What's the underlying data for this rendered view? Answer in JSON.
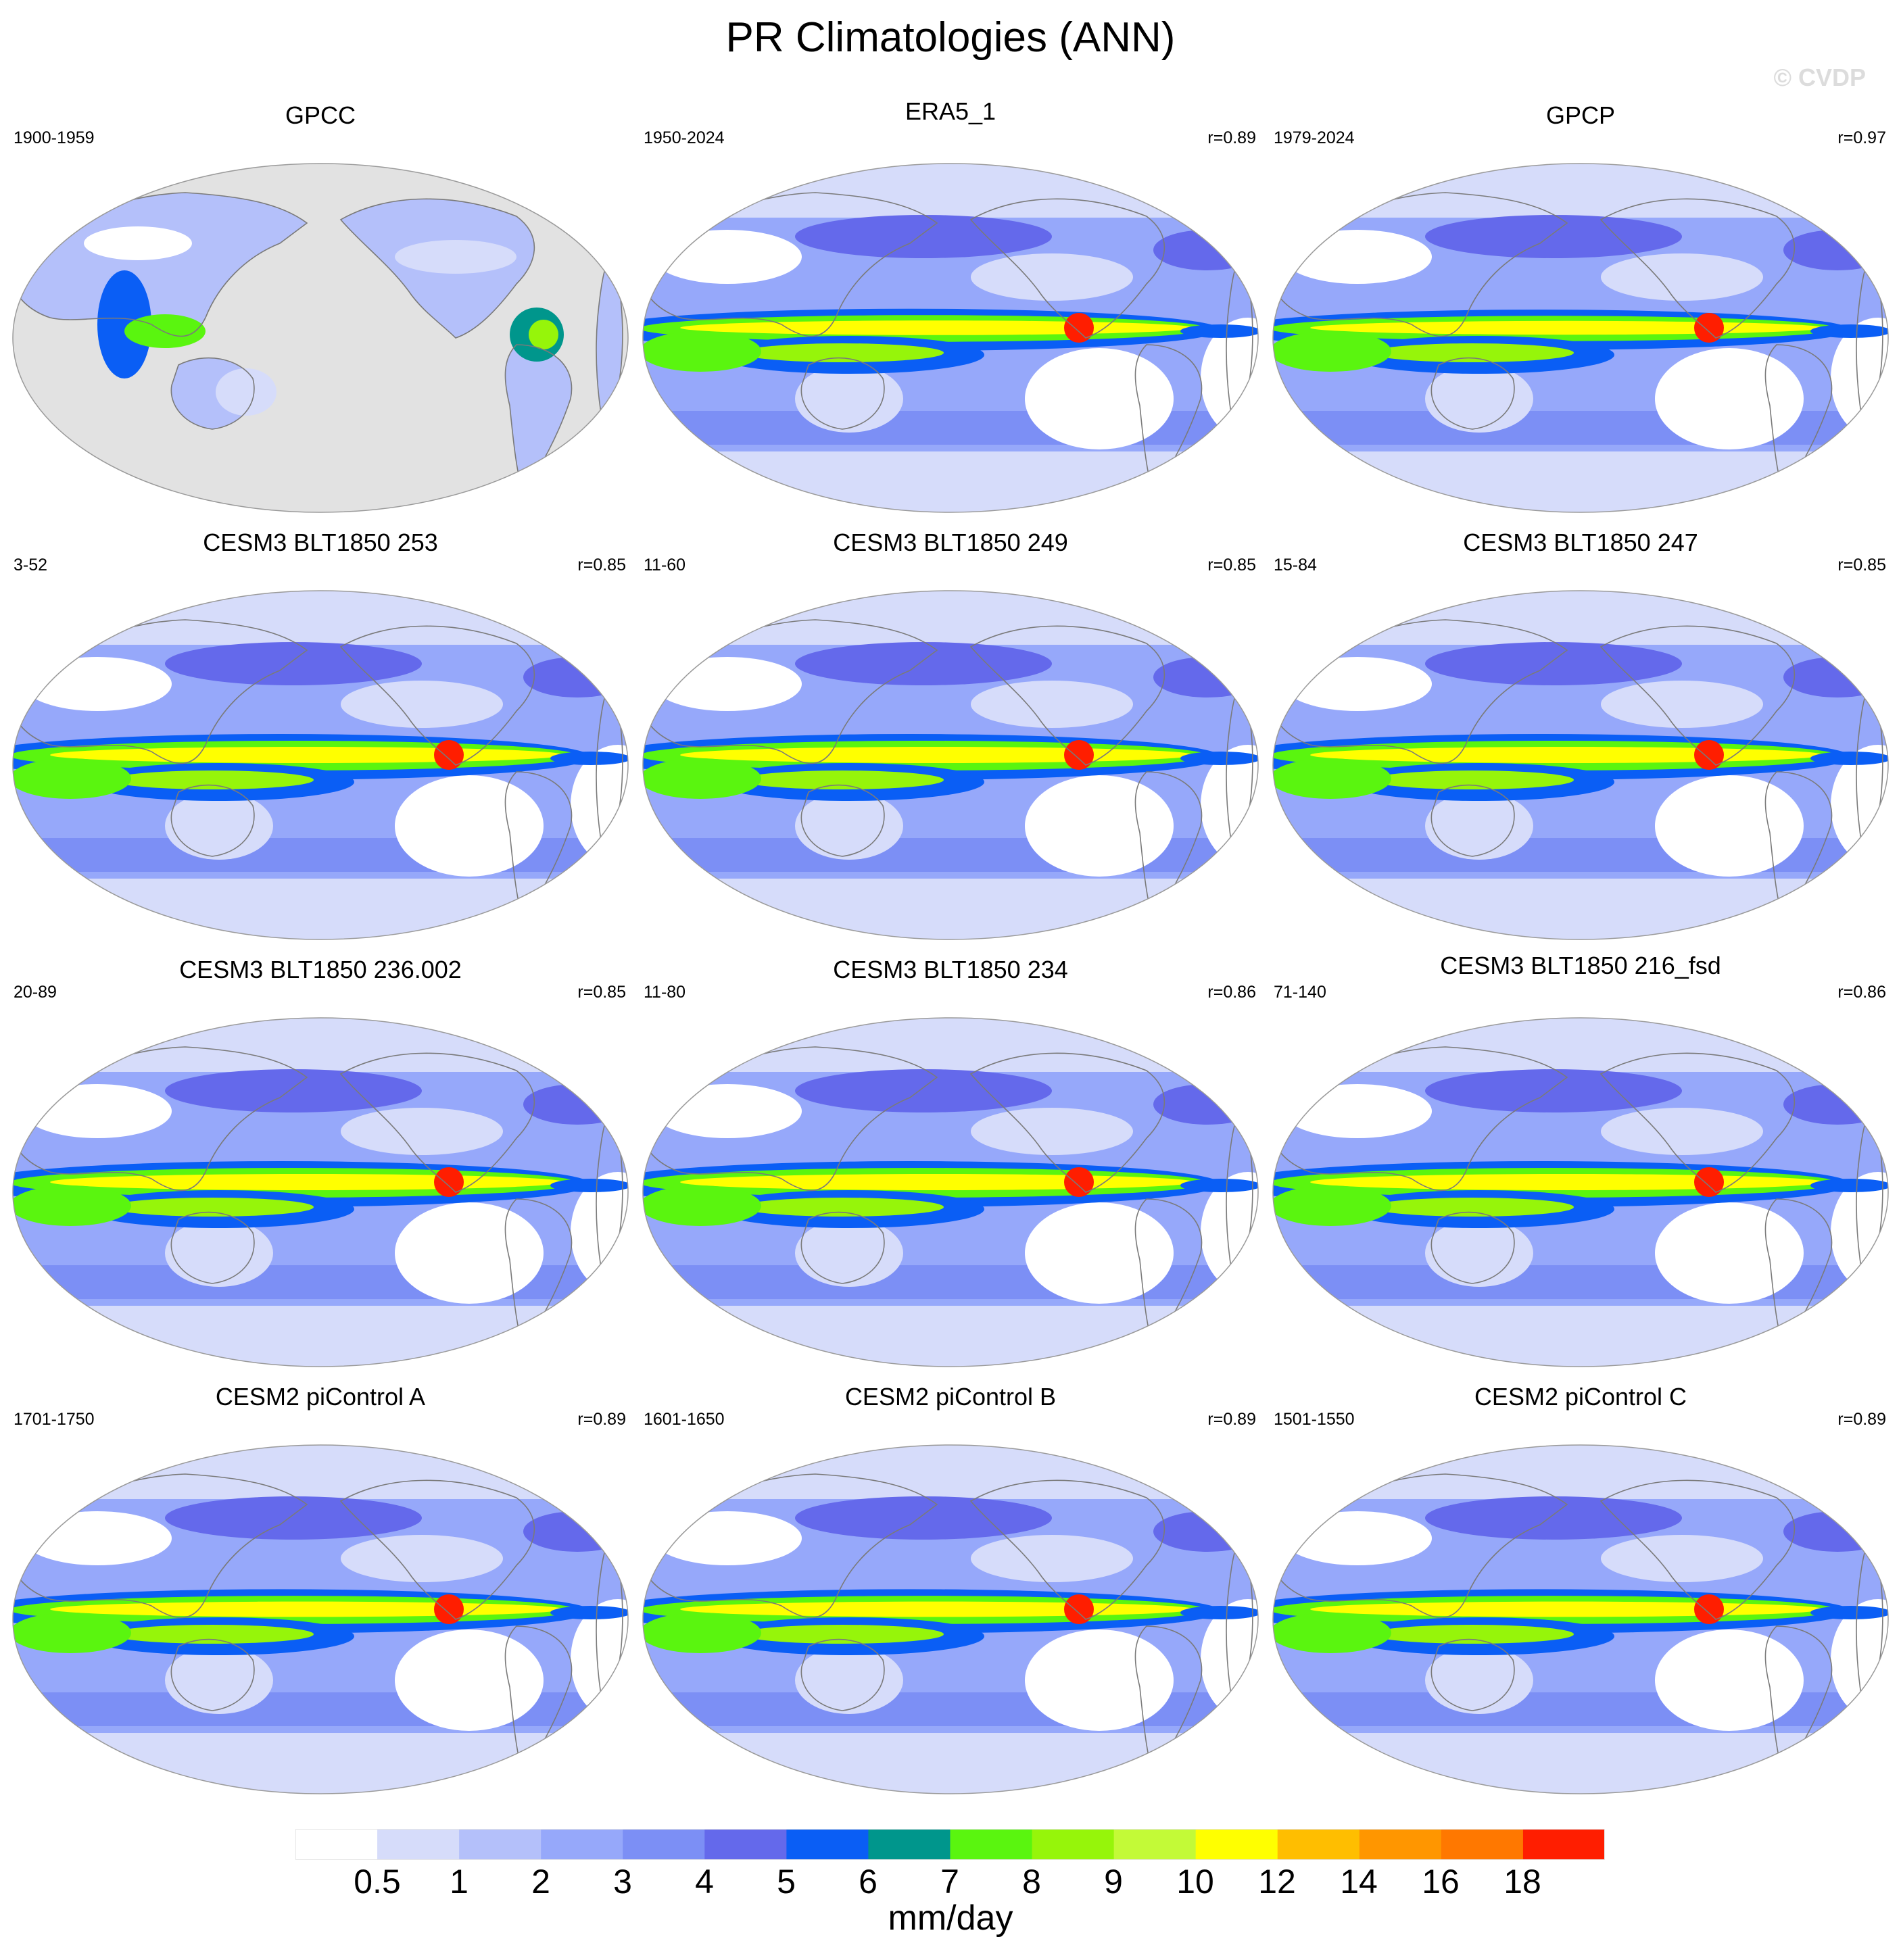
{
  "title": "PR Climatologies (ANN)",
  "watermark": "© CVDP",
  "panels": [
    {
      "title": "GPCC",
      "years": "1900-1959",
      "corr": "",
      "land_only": true,
      "itcz": 0
    },
    {
      "title": "ERA5_1",
      "years": "1950-2024",
      "corr": "r=0.89",
      "land_only": false,
      "itcz": 0.8
    },
    {
      "title": "GPCP",
      "years": "1979-2024",
      "corr": "r=0.97",
      "land_only": false,
      "itcz": 0.7
    },
    {
      "title": "CESM3 BLT1850 253",
      "years": "3-52",
      "corr": "r=0.85",
      "land_only": false,
      "itcz": 1.0
    },
    {
      "title": "CESM3 BLT1850 249",
      "years": "11-60",
      "corr": "r=0.85",
      "land_only": false,
      "itcz": 1.0
    },
    {
      "title": "CESM3 BLT1850 247",
      "years": "15-84",
      "corr": "r=0.85",
      "land_only": false,
      "itcz": 1.0
    },
    {
      "title": "CESM3 BLT1850 236.002",
      "years": "20-89",
      "corr": "r=0.85",
      "land_only": false,
      "itcz": 1.0
    },
    {
      "title": "CESM3 BLT1850 234",
      "years": "11-80",
      "corr": "r=0.86",
      "land_only": false,
      "itcz": 1.0
    },
    {
      "title": "CESM3 BLT1850 216_fsd",
      "years": "71-140",
      "corr": "r=0.86",
      "land_only": false,
      "itcz": 1.0
    },
    {
      "title": "CESM2 piControl A",
      "years": "1701-1750",
      "corr": "r=0.89",
      "land_only": false,
      "itcz": 0.9
    },
    {
      "title": "CESM2 piControl B",
      "years": "1601-1650",
      "corr": "r=0.89",
      "land_only": false,
      "itcz": 0.9
    },
    {
      "title": "CESM2 piControl C",
      "years": "1501-1550",
      "corr": "r=0.89",
      "land_only": false,
      "itcz": 0.9
    }
  ],
  "colorbar": {
    "labels": [
      "0.5",
      "1",
      "2",
      "3",
      "4",
      "5",
      "6",
      "7",
      "8",
      "9",
      "10",
      "12",
      "14",
      "16",
      "18"
    ],
    "colors": [
      "#ffffff",
      "#d6dcfa",
      "#b4c0fa",
      "#96a8fa",
      "#7c8ff5",
      "#6469eb",
      "#0a5ef5",
      "#00968c",
      "#5af50f",
      "#96f50a",
      "#c3fa37",
      "#ffff00",
      "#ffbe00",
      "#ff9600",
      "#ff7800",
      "#ff1e00"
    ],
    "units": "mm/day"
  },
  "colors": {
    "land_gray": "#e2e2e2",
    "coastline": "#7a7a7a",
    "map_border": "#9a9a9a"
  }
}
